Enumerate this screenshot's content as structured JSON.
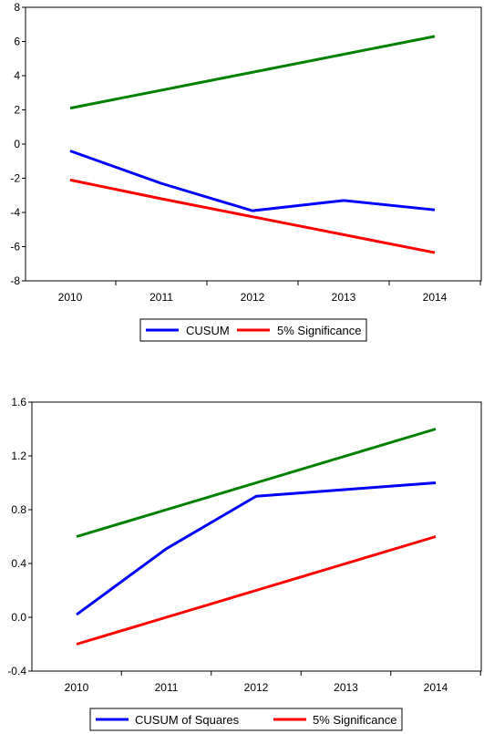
{
  "chart_data": [
    {
      "type": "line",
      "categories": [
        "2010",
        "2011",
        "2012",
        "2013",
        "2014"
      ],
      "ylim": [
        -8,
        8
      ],
      "yticks": [
        8,
        6,
        4,
        2,
        0,
        -2,
        -4,
        -6,
        -8
      ],
      "ytick_labels": [
        "8",
        "6",
        "4",
        "2",
        "0",
        "-2",
        "-4",
        "-6",
        "-8"
      ],
      "grid": false,
      "legend_position": "bottom-center",
      "series": [
        {
          "name": "CUSUM",
          "color": "#0000ff",
          "values": [
            -0.4,
            -2.3,
            -3.9,
            -3.3,
            -3.85
          ],
          "in_legend": true
        },
        {
          "name": "5% Significance",
          "color": "#ff0000",
          "values": [
            -2.1,
            -3.2,
            -4.25,
            -5.3,
            -6.35
          ],
          "in_legend": true
        },
        {
          "name": "",
          "color": "#008000",
          "values": [
            2.1,
            3.15,
            4.2,
            5.25,
            6.3
          ],
          "in_legend": false
        }
      ]
    },
    {
      "type": "line",
      "categories": [
        "2010",
        "2011",
        "2012",
        "2013",
        "2014"
      ],
      "ylim": [
        -0.4,
        1.6
      ],
      "yticks": [
        1.6,
        1.2,
        0.8,
        0.4,
        0.0,
        -0.4
      ],
      "ytick_labels": [
        "1.6",
        "1.2",
        "0.8",
        "0.4",
        "0.0",
        "-0.4"
      ],
      "grid": false,
      "legend_position": "bottom-center",
      "series": [
        {
          "name": "CUSUM of Squares",
          "color": "#0000ff",
          "values": [
            0.02,
            0.51,
            0.9,
            0.95,
            1.0
          ],
          "in_legend": true
        },
        {
          "name": "5% Significance",
          "color": "#ff0000",
          "values": [
            -0.2,
            0.0,
            0.2,
            0.4,
            0.6
          ],
          "in_legend": true
        },
        {
          "name": "",
          "color": "#008000",
          "values": [
            0.6,
            0.8,
            1.0,
            1.2,
            1.4
          ],
          "in_legend": false
        }
      ]
    }
  ]
}
